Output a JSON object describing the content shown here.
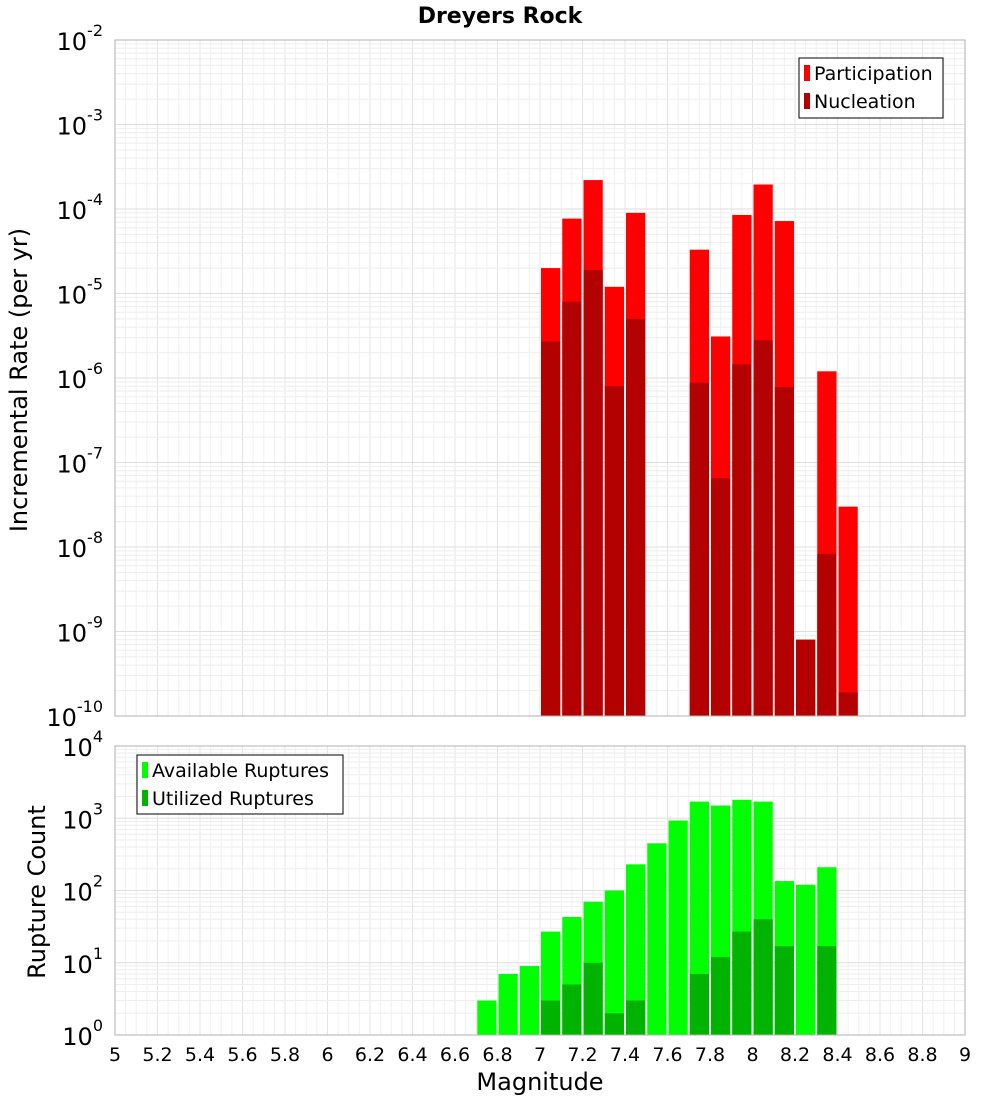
{
  "chart_data": [
    {
      "type": "bar",
      "title": "Dreyers Rock",
      "xlabel": "",
      "ylabel": "Incremental Rate (per yr)",
      "y_scale": "log",
      "ylim_exponents": [
        -10,
        -2
      ],
      "xlim": [
        5,
        9
      ],
      "legend": {
        "position": "top-right",
        "entries": [
          "Participation",
          "Nucleation"
        ]
      },
      "colors": {
        "Participation": "#ff0000",
        "Nucleation": "#b30000"
      },
      "x": [
        7.05,
        7.15,
        7.25,
        7.35,
        7.45,
        7.75,
        7.85,
        7.95,
        8.05,
        8.15,
        8.25,
        8.35,
        8.45
      ],
      "series": [
        {
          "name": "Participation",
          "values": [
            2e-05,
            7.7e-05,
            0.00022,
            1.2e-05,
            9e-05,
            3.3e-05,
            3.1e-06,
            8.5e-05,
            0.000195,
            7.2e-05,
            8e-10,
            1.2e-06,
            3e-08
          ]
        },
        {
          "name": "Nucleation",
          "values": [
            2.7e-06,
            8e-06,
            1.9e-05,
            8e-07,
            5e-06,
            8.8e-07,
            6.5e-08,
            1.45e-06,
            2.8e-06,
            7.8e-07,
            8e-10,
            8.3e-09,
            1.9e-10
          ]
        }
      ],
      "grid": true
    },
    {
      "type": "bar",
      "title": "",
      "xlabel": "Magnitude",
      "ylabel": "Rupture Count",
      "y_scale": "log",
      "ylim_exponents": [
        0,
        4
      ],
      "xlim": [
        5,
        9
      ],
      "x_ticks": [
        "5",
        "5.2",
        "5.4",
        "5.6",
        "5.8",
        "6",
        "6.2",
        "6.4",
        "6.6",
        "6.8",
        "7",
        "7.2",
        "7.4",
        "7.6",
        "7.8",
        "8",
        "8.2",
        "8.4",
        "8.6",
        "8.8",
        "9"
      ],
      "legend": {
        "position": "top-left",
        "entries": [
          "Available Ruptures",
          "Utilized Ruptures"
        ]
      },
      "colors": {
        "Available Ruptures": "#00ff00",
        "Utilized Ruptures": "#00b300"
      },
      "x": [
        6.25,
        6.55,
        6.75,
        6.85,
        6.95,
        7.05,
        7.15,
        7.25,
        7.35,
        7.45,
        7.55,
        7.65,
        7.75,
        7.85,
        7.95,
        8.05,
        8.15,
        8.25,
        8.35,
        8.45
      ],
      "series": [
        {
          "name": "Available Ruptures",
          "values": [
            1,
            1,
            3,
            7,
            9,
            27,
            43,
            70,
            100,
            230,
            450,
            930,
            1700,
            1500,
            1800,
            1700,
            135,
            120,
            210,
            1
          ]
        },
        {
          "name": "Utilized Ruptures",
          "values": [
            0,
            0,
            0,
            0,
            0,
            3,
            5,
            10,
            2,
            3,
            0,
            0,
            7,
            12,
            27,
            40,
            17,
            1,
            17,
            1
          ]
        }
      ],
      "grid": true
    }
  ]
}
